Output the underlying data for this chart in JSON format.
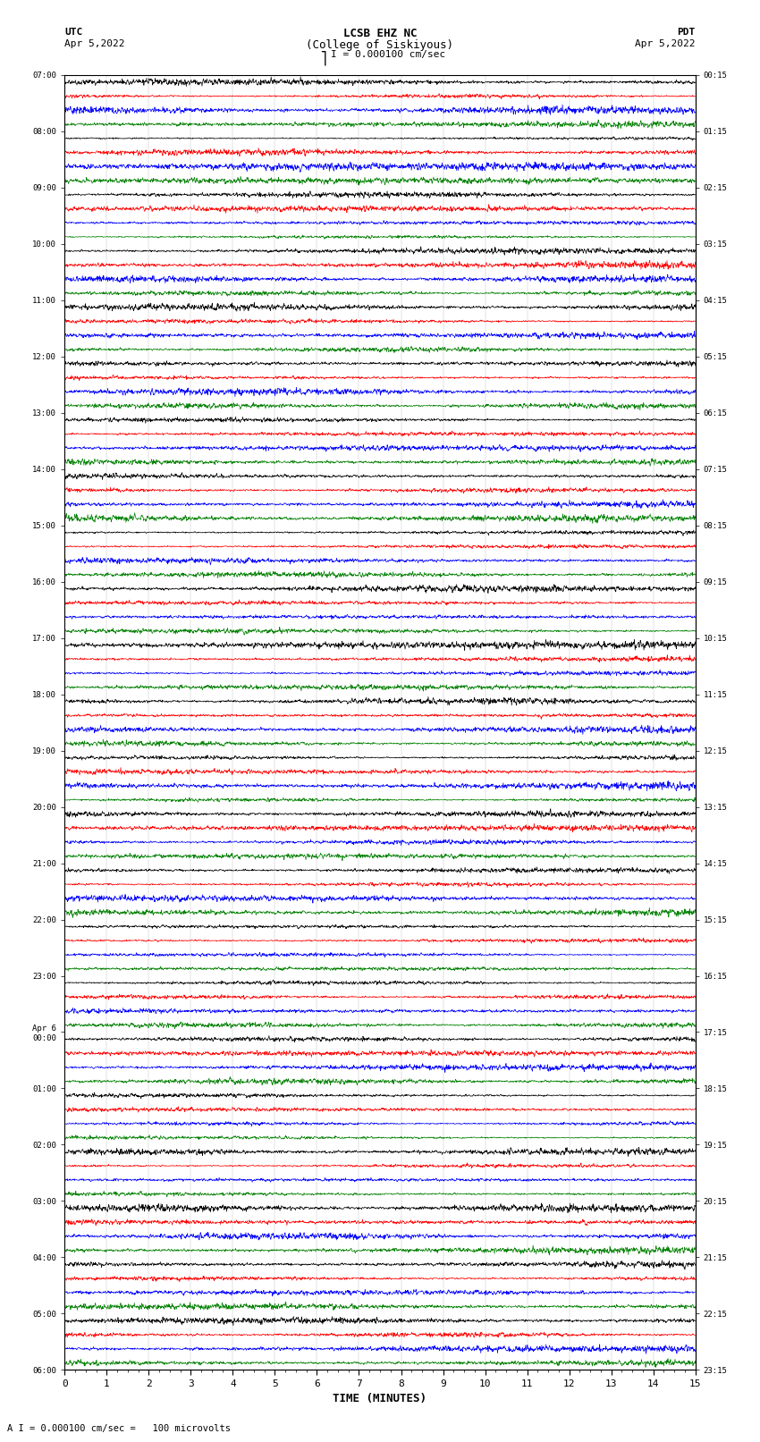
{
  "title_line1": "LCSB EHZ NC",
  "title_line2": "(College of Siskiyous)",
  "scale_text": "I = 0.000100 cm/sec",
  "left_label_top": "UTC",
  "left_label_date": "Apr 5,2022",
  "right_label_top": "PDT",
  "right_label_date": "Apr 5,2022",
  "bottom_label": "TIME (MINUTES)",
  "footnote": "A I = 0.000100 cm/sec =   100 microvolts",
  "utc_hours": [
    "07:00",
    "08:00",
    "09:00",
    "10:00",
    "11:00",
    "12:00",
    "13:00",
    "14:00",
    "15:00",
    "16:00",
    "17:00",
    "18:00",
    "19:00",
    "20:00",
    "21:00",
    "22:00",
    "23:00",
    "Apr 6\n00:00",
    "01:00",
    "02:00",
    "03:00",
    "04:00",
    "05:00",
    "06:00"
  ],
  "pdt_hours": [
    "00:15",
    "01:15",
    "02:15",
    "03:15",
    "04:15",
    "05:15",
    "06:15",
    "07:15",
    "08:15",
    "09:15",
    "10:15",
    "11:15",
    "12:15",
    "13:15",
    "14:15",
    "15:15",
    "16:15",
    "17:15",
    "18:15",
    "19:15",
    "20:15",
    "21:15",
    "22:15",
    "23:15"
  ],
  "num_hour_blocks": 23,
  "traces_per_block": 4,
  "colors": [
    "black",
    "red",
    "blue",
    "green"
  ],
  "bg_color": "white",
  "line_width": 0.5,
  "xlabel_ticks": [
    0,
    1,
    2,
    3,
    4,
    5,
    6,
    7,
    8,
    9,
    10,
    11,
    12,
    13,
    14,
    15
  ],
  "n_samples": 1800,
  "xmin": 0,
  "xmax": 15
}
